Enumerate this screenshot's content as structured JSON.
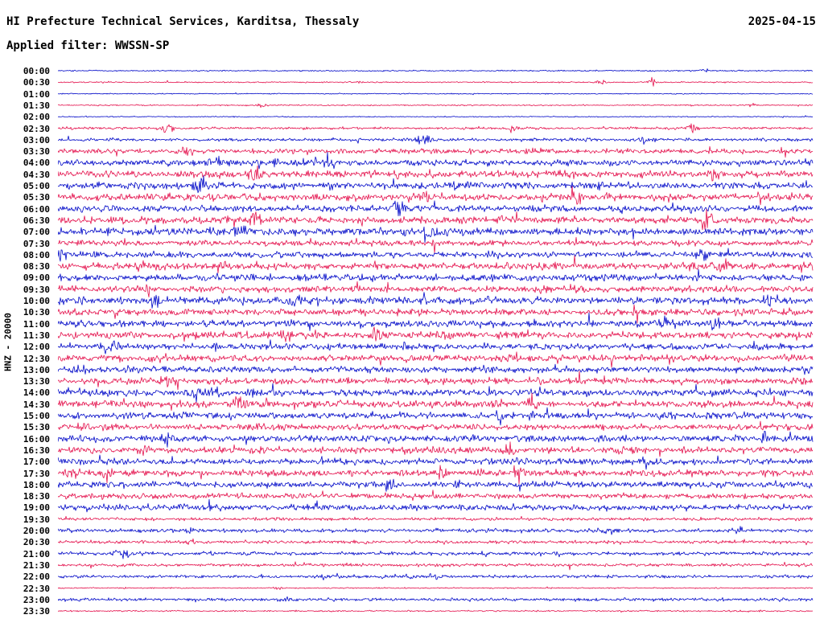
{
  "header": {
    "title": "HI Prefecture Technical Services, Karditsa, Thessaly",
    "date": "2025-04-15",
    "filter_label": "Applied filter: WWSSN-SP"
  },
  "axis": {
    "station_label": "HNZ - 20000"
  },
  "colors": {
    "trace_blue": "#0008c8",
    "trace_red": "#e4104c",
    "text": "#000000",
    "background": "#ffffff"
  },
  "chart_data": {
    "type": "line",
    "subtype": "helicorder-seismogram",
    "title": "HI Prefecture Technical Services, Karditsa, Thessaly",
    "date": "2025-04-15",
    "filter": "WWSSN-SP",
    "station_label": "HNZ - 20000",
    "row_interval_minutes": 30,
    "legend": "48 rows of 30 minutes each, alternating blue/red traces, amplitude is relative ground motion",
    "rows": [
      {
        "time": "00:00",
        "color": "blue",
        "activity": 0.1
      },
      {
        "time": "00:30",
        "color": "red",
        "activity": 0.1
      },
      {
        "time": "01:00",
        "color": "blue",
        "activity": 0.08
      },
      {
        "time": "01:30",
        "color": "red",
        "activity": 0.1
      },
      {
        "time": "02:00",
        "color": "blue",
        "activity": 0.08
      },
      {
        "time": "02:30",
        "color": "red",
        "activity": 0.2
      },
      {
        "time": "03:00",
        "color": "blue",
        "activity": 0.25
      },
      {
        "time": "03:30",
        "color": "red",
        "activity": 0.4
      },
      {
        "time": "04:00",
        "color": "blue",
        "activity": 0.5
      },
      {
        "time": "04:30",
        "color": "red",
        "activity": 0.55
      },
      {
        "time": "05:00",
        "color": "blue",
        "activity": 0.55
      },
      {
        "time": "05:30",
        "color": "red",
        "activity": 0.6
      },
      {
        "time": "06:00",
        "color": "blue",
        "activity": 0.55
      },
      {
        "time": "06:30",
        "color": "red",
        "activity": 0.55
      },
      {
        "time": "07:00",
        "color": "blue",
        "activity": 0.6
      },
      {
        "time": "07:30",
        "color": "red",
        "activity": 0.45
      },
      {
        "time": "08:00",
        "color": "blue",
        "activity": 0.5
      },
      {
        "time": "08:30",
        "color": "red",
        "activity": 0.55
      },
      {
        "time": "09:00",
        "color": "blue",
        "activity": 0.55
      },
      {
        "time": "09:30",
        "color": "red",
        "activity": 0.5
      },
      {
        "time": "10:00",
        "color": "blue",
        "activity": 0.6
      },
      {
        "time": "10:30",
        "color": "red",
        "activity": 0.55
      },
      {
        "time": "11:00",
        "color": "blue",
        "activity": 0.55
      },
      {
        "time": "11:30",
        "color": "red",
        "activity": 0.55
      },
      {
        "time": "12:00",
        "color": "blue",
        "activity": 0.5
      },
      {
        "time": "12:30",
        "color": "red",
        "activity": 0.55
      },
      {
        "time": "13:00",
        "color": "blue",
        "activity": 0.5
      },
      {
        "time": "13:30",
        "color": "red",
        "activity": 0.5
      },
      {
        "time": "14:00",
        "color": "blue",
        "activity": 0.55
      },
      {
        "time": "14:30",
        "color": "red",
        "activity": 0.55
      },
      {
        "time": "15:00",
        "color": "blue",
        "activity": 0.55
      },
      {
        "time": "15:30",
        "color": "red",
        "activity": 0.5
      },
      {
        "time": "16:00",
        "color": "blue",
        "activity": 0.55
      },
      {
        "time": "16:30",
        "color": "red",
        "activity": 0.5
      },
      {
        "time": "17:00",
        "color": "blue",
        "activity": 0.5
      },
      {
        "time": "17:30",
        "color": "red",
        "activity": 0.55
      },
      {
        "time": "18:00",
        "color": "blue",
        "activity": 0.5
      },
      {
        "time": "18:30",
        "color": "red",
        "activity": 0.45
      },
      {
        "time": "19:00",
        "color": "blue",
        "activity": 0.5
      },
      {
        "time": "19:30",
        "color": "red",
        "activity": 0.25
      },
      {
        "time": "20:00",
        "color": "blue",
        "activity": 0.3
      },
      {
        "time": "20:30",
        "color": "red",
        "activity": 0.25
      },
      {
        "time": "21:00",
        "color": "blue",
        "activity": 0.3
      },
      {
        "time": "21:30",
        "color": "red",
        "activity": 0.25
      },
      {
        "time": "22:00",
        "color": "blue",
        "activity": 0.25
      },
      {
        "time": "22:30",
        "color": "red",
        "activity": 0.1
      },
      {
        "time": "23:00",
        "color": "blue",
        "activity": 0.25
      },
      {
        "time": "23:30",
        "color": "red",
        "activity": 0.12
      }
    ],
    "events": [
      {
        "row": 0,
        "pos": 0.855,
        "strength": 4.0,
        "width": 0.006
      },
      {
        "row": 1,
        "pos": 0.4,
        "strength": 2.0,
        "width": 0.008
      },
      {
        "row": 1,
        "pos": 0.72,
        "strength": 3.0,
        "width": 0.007
      },
      {
        "row": 1,
        "pos": 0.785,
        "strength": 8.0,
        "width": 0.006
      },
      {
        "row": 3,
        "pos": 0.27,
        "strength": 3.0,
        "width": 0.007
      },
      {
        "row": 3,
        "pos": 0.92,
        "strength": 3.5,
        "width": 0.006
      },
      {
        "row": 5,
        "pos": 0.145,
        "strength": 3.0,
        "width": 0.008
      },
      {
        "row": 5,
        "pos": 0.6,
        "strength": 2.5,
        "width": 0.008
      },
      {
        "row": 5,
        "pos": 0.84,
        "strength": 3.0,
        "width": 0.007
      },
      {
        "row": 6,
        "pos": 0.48,
        "strength": 3.0,
        "width": 0.009
      },
      {
        "row": 6,
        "pos": 0.78,
        "strength": 2.5,
        "width": 0.008
      },
      {
        "row": 7,
        "pos": 0.17,
        "strength": 2.0,
        "width": 0.009
      },
      {
        "row": 8,
        "pos": 0.21,
        "strength": 2.0,
        "width": 0.01
      },
      {
        "row": 8,
        "pos": 0.35,
        "strength": 1.7,
        "width": 0.009
      },
      {
        "row": 9,
        "pos": 0.26,
        "strength": 2.8,
        "width": 0.009
      },
      {
        "row": 9,
        "pos": 0.87,
        "strength": 2.0,
        "width": 0.008
      },
      {
        "row": 10,
        "pos": 0.19,
        "strength": 2.2,
        "width": 0.009
      },
      {
        "row": 12,
        "pos": 0.45,
        "strength": 2.0,
        "width": 0.009
      },
      {
        "row": 13,
        "pos": 0.26,
        "strength": 2.5,
        "width": 0.008
      },
      {
        "row": 13,
        "pos": 0.86,
        "strength": 2.5,
        "width": 0.008
      },
      {
        "row": 14,
        "pos": 0.49,
        "strength": 2.0,
        "width": 0.009
      },
      {
        "row": 17,
        "pos": 0.88,
        "strength": 1.6,
        "width": 0.008
      },
      {
        "row": 20,
        "pos": 0.13,
        "strength": 2.0,
        "width": 0.009
      },
      {
        "row": 23,
        "pos": 0.3,
        "strength": 2.0,
        "width": 0.009
      },
      {
        "row": 26,
        "pos": 0.03,
        "strength": 1.8,
        "width": 0.008
      },
      {
        "row": 29,
        "pos": 0.24,
        "strength": 2.0,
        "width": 0.009
      },
      {
        "row": 33,
        "pos": 0.6,
        "strength": 1.6,
        "width": 0.008
      },
      {
        "row": 36,
        "pos": 0.44,
        "strength": 1.6,
        "width": 0.008
      },
      {
        "row": 40,
        "pos": 0.9,
        "strength": 2.2,
        "width": 0.008
      },
      {
        "row": 44,
        "pos": 0.5,
        "strength": 1.8,
        "width": 0.008
      },
      {
        "row": 45,
        "pos": 0.29,
        "strength": 3.0,
        "width": 0.006
      },
      {
        "row": 46,
        "pos": 0.3,
        "strength": 1.5,
        "width": 0.008
      }
    ]
  }
}
